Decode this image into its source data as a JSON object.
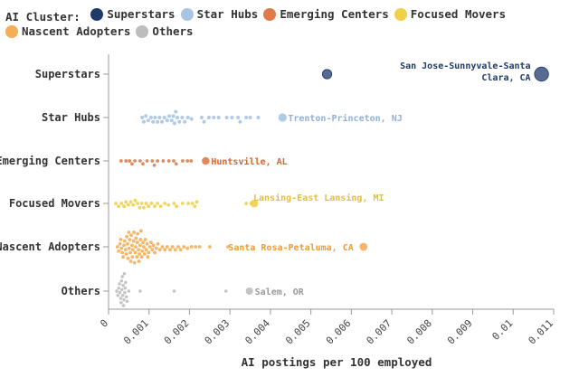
{
  "chart_data": {
    "type": "scatter",
    "legend_title": "AI Cluster:",
    "legend_position": "top",
    "xlabel": "AI postings per 100 employed",
    "xlim": [
      0,
      0.011
    ],
    "xticks": [
      "0",
      "0.001",
      "0.002",
      "0.003",
      "0.004",
      "0.005",
      "0.006",
      "0.007",
      "0.008",
      "0.009",
      "0.01",
      "0.011"
    ],
    "grid": false,
    "series": [
      {
        "name": "Superstars",
        "color": "#1f3a6b",
        "size": 2.8,
        "x": [
          0.0054,
          0.0107
        ],
        "annotation": {
          "text": "San Jose-Sunnyvale-Santa Clara, CA",
          "lines": [
            "San Jose-Sunnyvale-Santa",
            "Clara, CA"
          ]
        }
      },
      {
        "name": "Star Hubs",
        "color": "#a9c4e5",
        "size": 2.0,
        "x": [
          0.00083,
          0.00087,
          0.00092,
          0.00098,
          0.00105,
          0.0011,
          0.00115,
          0.00121,
          0.00126,
          0.00132,
          0.00138,
          0.00145,
          0.0015,
          0.00156,
          0.0016,
          0.00163,
          0.00166,
          0.0017,
          0.00175,
          0.00182,
          0.00188,
          0.00196,
          0.00205,
          0.0023,
          0.00236,
          0.00248,
          0.0026,
          0.00272,
          0.00292,
          0.00305,
          0.0032,
          0.00325,
          0.0034,
          0.0035,
          0.0037,
          0.0043
        ],
        "annotation": {
          "text": "Trenton-Princeton, NJ",
          "lines": [
            "Trenton-Princeton, NJ"
          ]
        }
      },
      {
        "name": "Emerging Centers",
        "color": "#e07a4b",
        "size": 1.85,
        "x": [
          0.00031,
          0.00043,
          0.00052,
          0.00058,
          0.00065,
          0.00078,
          0.00085,
          0.00095,
          0.00108,
          0.00113,
          0.00121,
          0.00135,
          0.00149,
          0.00161,
          0.00167,
          0.00183,
          0.00195,
          0.00204,
          0.0024
        ],
        "annotation": {
          "text": "Huntsville, AL",
          "lines": [
            "Huntsville, AL"
          ]
        }
      },
      {
        "name": "Focused Movers",
        "color": "#f0d048",
        "size": 1.9,
        "x": [
          0.00018,
          0.00025,
          0.00032,
          0.00038,
          0.00043,
          0.00049,
          0.00055,
          0.00061,
          0.00066,
          0.00072,
          0.00077,
          0.00082,
          0.00087,
          0.00093,
          0.00099,
          0.00106,
          0.00114,
          0.00121,
          0.00129,
          0.00139,
          0.00148,
          0.00162,
          0.00168,
          0.00183,
          0.00197,
          0.00207,
          0.00213,
          0.00218,
          0.0034,
          0.00352,
          0.0036
        ],
        "annotation": {
          "text": "Lansing-East Lansing, MI",
          "lines": [
            "Lansing-East Lansing, MI"
          ]
        }
      },
      {
        "name": "Nascent Adopters",
        "color": "#f3ae58",
        "size": 1.9,
        "x": [
          0.00022,
          0.00025,
          0.00028,
          0.0003,
          0.00032,
          0.00034,
          0.00036,
          0.00038,
          0.0004,
          0.00042,
          0.00044,
          0.00045,
          0.00047,
          0.00048,
          0.0005,
          0.00051,
          0.00052,
          0.00054,
          0.00055,
          0.00056,
          0.00058,
          0.00059,
          0.0006,
          0.00062,
          0.00063,
          0.00064,
          0.00066,
          0.00067,
          0.00068,
          0.0007,
          0.00071,
          0.00072,
          0.00074,
          0.00075,
          0.00076,
          0.00078,
          0.00079,
          0.0008,
          0.00082,
          0.00083,
          0.00085,
          0.00087,
          0.00089,
          0.00091,
          0.00093,
          0.00095,
          0.00097,
          0.00099,
          0.00102,
          0.00105,
          0.00108,
          0.00111,
          0.00114,
          0.00118,
          0.00122,
          0.00127,
          0.00133,
          0.00139,
          0.00145,
          0.00152,
          0.00158,
          0.00165,
          0.00172,
          0.00178,
          0.00186,
          0.00195,
          0.00205,
          0.00215,
          0.00225,
          0.0025,
          0.00295,
          0.0063
        ],
        "annotation": {
          "text": "Santa Rosa-Petaluma, CA",
          "lines": [
            "Santa Rosa-Petaluma, CA"
          ]
        }
      },
      {
        "name": "Others",
        "color": "#bdbdbd",
        "size": 1.75,
        "x": [
          0.0002,
          0.00023,
          0.00025,
          0.00027,
          0.00028,
          0.0003,
          0.00031,
          0.00032,
          0.00033,
          0.00034,
          0.00035,
          0.00036,
          0.00037,
          0.00038,
          0.00039,
          0.0004,
          0.00041,
          0.00042,
          0.00044,
          0.00046,
          0.0005,
          0.00078,
          0.00162,
          0.0029,
          0.00348
        ],
        "annotation": {
          "text": "Salem, OR",
          "lines": [
            "Salem, OR"
          ]
        }
      }
    ]
  }
}
